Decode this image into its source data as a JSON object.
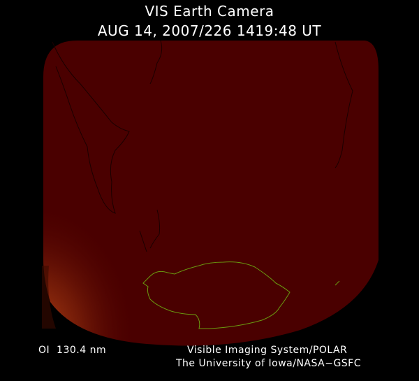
{
  "header": {
    "title": "VIS Earth Camera",
    "timestamp": "AUG 14, 2007/226 1419:48 UT"
  },
  "footer": {
    "wavelength": "OI  130.4 nm",
    "instrument": "Visible Imaging System/POLAR",
    "institution": "The University of Iowa/NASA−GSFC"
  }
}
